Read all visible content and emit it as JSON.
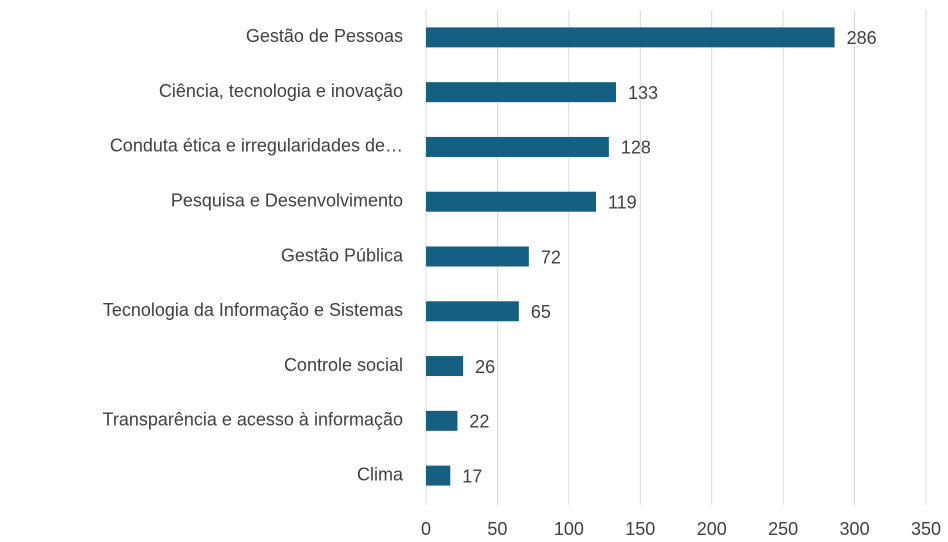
{
  "chart_data": {
    "type": "bar",
    "orientation": "horizontal",
    "categories": [
      "Gestão de Pessoas",
      "Ciência, tecnologia e inovação",
      "Conduta ética e irregularidades de…",
      "Pesquisa e Desenvolvimento",
      "Gestão Pública",
      "Tecnologia da Informação e Sistemas",
      "Controle social",
      "Transparência e acesso à informação",
      "Clima"
    ],
    "values": [
      286,
      133,
      128,
      119,
      72,
      65,
      26,
      22,
      17
    ],
    "color": "#156082",
    "xlim": [
      0,
      350
    ],
    "xticks": [
      0,
      50,
      100,
      150,
      200,
      250,
      300,
      350
    ],
    "grid": true
  }
}
